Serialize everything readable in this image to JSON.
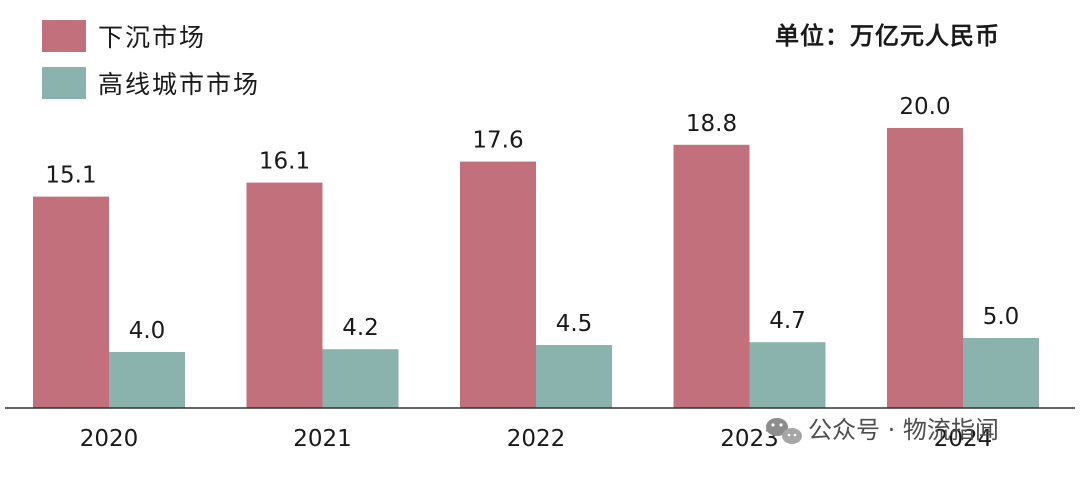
{
  "chart_data": {
    "type": "bar",
    "unit": "单位：万亿元人民币",
    "categories": [
      "2020",
      "2021",
      "2022",
      "2023",
      "2024"
    ],
    "series": [
      {
        "name": "下沉市场",
        "color": "#c1707c",
        "values": [
          15.1,
          16.1,
          17.6,
          18.8,
          20.0
        ]
      },
      {
        "name": "高线城市市场",
        "color": "#8ab3ad",
        "values": [
          4.0,
          4.2,
          4.5,
          4.7,
          5.0
        ]
      }
    ],
    "value_labels": [
      [
        "15.1",
        "16.1",
        "17.6",
        "18.8",
        "20.0"
      ],
      [
        "4.0",
        "4.2",
        "4.5",
        "4.7",
        "5.0"
      ]
    ],
    "ylim": [
      0,
      20
    ],
    "grid": false,
    "legend_position": "top-left"
  },
  "watermark": {
    "text": "公众号 · 物流指闻",
    "icon": "wechat-icon"
  }
}
